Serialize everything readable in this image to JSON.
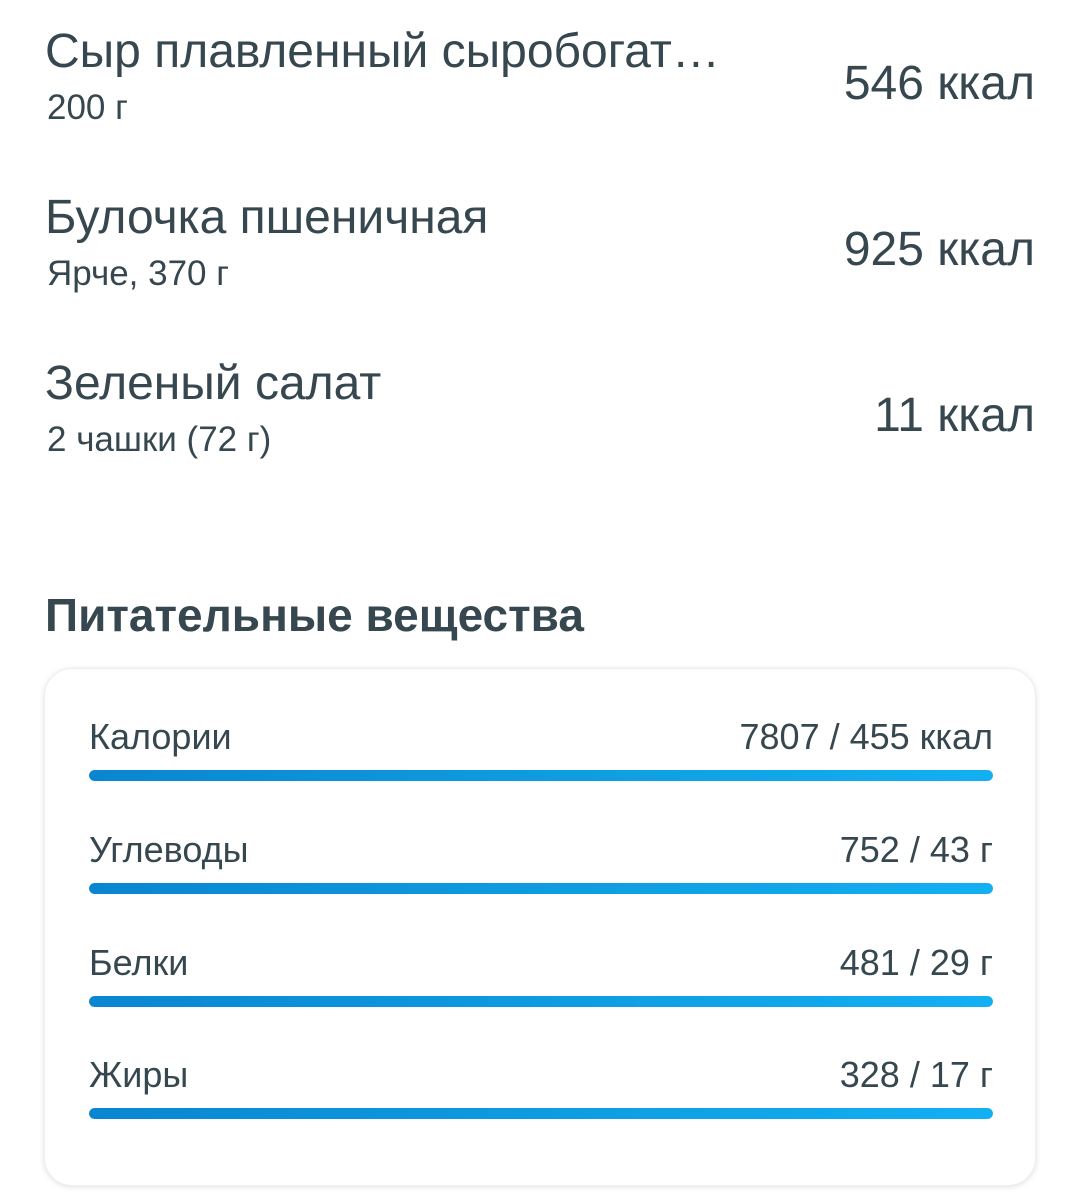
{
  "foods": [
    {
      "name": "Сыр плавленный сыробогат…",
      "detail": "200 г",
      "kcal": "546 ккал"
    },
    {
      "name": "Булочка пшеничная",
      "detail": "Ярче, 370 г",
      "kcal": "925 ккал"
    },
    {
      "name": "Зеленый салат",
      "detail": "2 чашки (72 г)",
      "kcal": "11 ккал"
    }
  ],
  "nutrients": {
    "title": "Питательные вещества",
    "rows": [
      {
        "label": "Калории",
        "value": "7807 / 455 ккал",
        "progress": 1.0
      },
      {
        "label": "Углеводы",
        "value": "752 / 43 г",
        "progress": 1.0
      },
      {
        "label": "Белки",
        "value": "481 / 29 г",
        "progress": 1.0
      },
      {
        "label": "Жиры",
        "value": "328 / 17 г",
        "progress": 1.0
      }
    ]
  },
  "colors": {
    "text": "#37474f",
    "progress_start": "#0a86d1",
    "progress_end": "#12b0f2"
  }
}
